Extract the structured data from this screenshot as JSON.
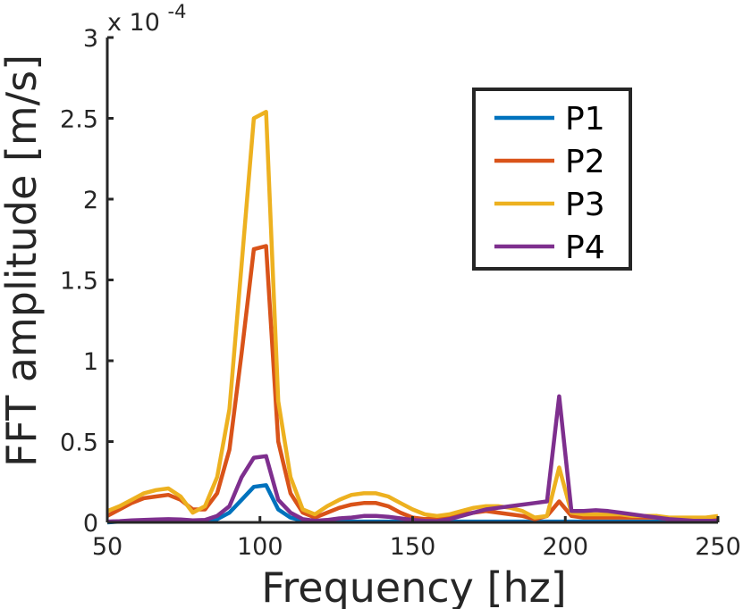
{
  "chart_data": {
    "type": "line",
    "xlabel": "Frequency [hz]",
    "ylabel": "FFT amplitude [m/s]",
    "exponent_label": "x 10",
    "exponent_power": "-4",
    "xlim": [
      50,
      250
    ],
    "ylim": [
      0,
      3
    ],
    "xticks": [
      50,
      100,
      150,
      200,
      250
    ],
    "xtick_labels": [
      "50",
      "100",
      "150",
      "200",
      "250"
    ],
    "yticks": [
      0,
      0.5,
      1,
      1.5,
      2,
      2.5,
      3
    ],
    "ytick_labels": [
      "0",
      "0.5",
      "1",
      "1.5",
      "2",
      "2.5",
      "3"
    ],
    "grid": false,
    "legend_position": "top-right",
    "x": [
      50,
      54,
      58,
      62,
      66,
      70,
      74,
      78,
      82,
      86,
      90,
      94,
      98,
      102,
      106,
      110,
      114,
      118,
      122,
      126,
      130,
      134,
      138,
      142,
      146,
      150,
      154,
      158,
      162,
      166,
      170,
      174,
      178,
      182,
      186,
      190,
      194,
      198,
      202,
      206,
      210,
      214,
      218,
      222,
      226,
      230,
      234,
      238,
      242,
      246,
      250
    ],
    "series": [
      {
        "name": "P1",
        "color": "#0072BD",
        "values": [
          0.0,
          0.005,
          0.008,
          0.01,
          0.012,
          0.015,
          0.012,
          0.008,
          0.01,
          0.02,
          0.06,
          0.14,
          0.22,
          0.23,
          0.08,
          0.03,
          0.01,
          0.005,
          0.005,
          0.005,
          0.005,
          0.005,
          0.005,
          0.005,
          0.005,
          0.005,
          0.005,
          0.005,
          0.005,
          0.005,
          0.005,
          0.005,
          0.005,
          0.005,
          0.005,
          0.005,
          0.005,
          0.005,
          0.005,
          0.005,
          0.005,
          0.005,
          0.005,
          0.005,
          0.005,
          0.005,
          0.005,
          0.005,
          0.005,
          0.005,
          0.005
        ]
      },
      {
        "name": "P2",
        "color": "#D95319",
        "values": [
          0.04,
          0.08,
          0.12,
          0.15,
          0.16,
          0.17,
          0.14,
          0.08,
          0.08,
          0.18,
          0.45,
          1.05,
          1.69,
          1.71,
          0.5,
          0.18,
          0.06,
          0.03,
          0.06,
          0.09,
          0.11,
          0.12,
          0.12,
          0.1,
          0.06,
          0.03,
          0.02,
          0.03,
          0.04,
          0.05,
          0.06,
          0.07,
          0.06,
          0.05,
          0.04,
          0.02,
          0.04,
          0.13,
          0.04,
          0.03,
          0.03,
          0.03,
          0.03,
          0.03,
          0.03,
          0.03,
          0.02,
          0.02,
          0.02,
          0.02,
          0.02
        ]
      },
      {
        "name": "P3",
        "color": "#EDB120",
        "values": [
          0.07,
          0.1,
          0.14,
          0.18,
          0.2,
          0.21,
          0.16,
          0.06,
          0.1,
          0.28,
          0.7,
          1.6,
          2.5,
          2.54,
          0.75,
          0.28,
          0.08,
          0.05,
          0.1,
          0.14,
          0.17,
          0.18,
          0.18,
          0.16,
          0.12,
          0.08,
          0.05,
          0.04,
          0.05,
          0.07,
          0.09,
          0.1,
          0.1,
          0.09,
          0.07,
          0.03,
          0.04,
          0.34,
          0.06,
          0.05,
          0.05,
          0.05,
          0.05,
          0.04,
          0.04,
          0.04,
          0.03,
          0.03,
          0.03,
          0.03,
          0.04
        ]
      },
      {
        "name": "P4",
        "color": "#7E2F8E",
        "values": [
          0.005,
          0.008,
          0.012,
          0.015,
          0.018,
          0.02,
          0.018,
          0.012,
          0.015,
          0.04,
          0.1,
          0.28,
          0.4,
          0.41,
          0.14,
          0.06,
          0.02,
          0.01,
          0.015,
          0.025,
          0.03,
          0.04,
          0.04,
          0.035,
          0.025,
          0.015,
          0.01,
          0.008,
          0.02,
          0.04,
          0.06,
          0.08,
          0.09,
          0.1,
          0.11,
          0.12,
          0.13,
          0.78,
          0.07,
          0.07,
          0.075,
          0.07,
          0.06,
          0.05,
          0.04,
          0.03,
          0.02,
          0.015,
          0.01,
          0.01,
          0.01
        ]
      }
    ]
  }
}
